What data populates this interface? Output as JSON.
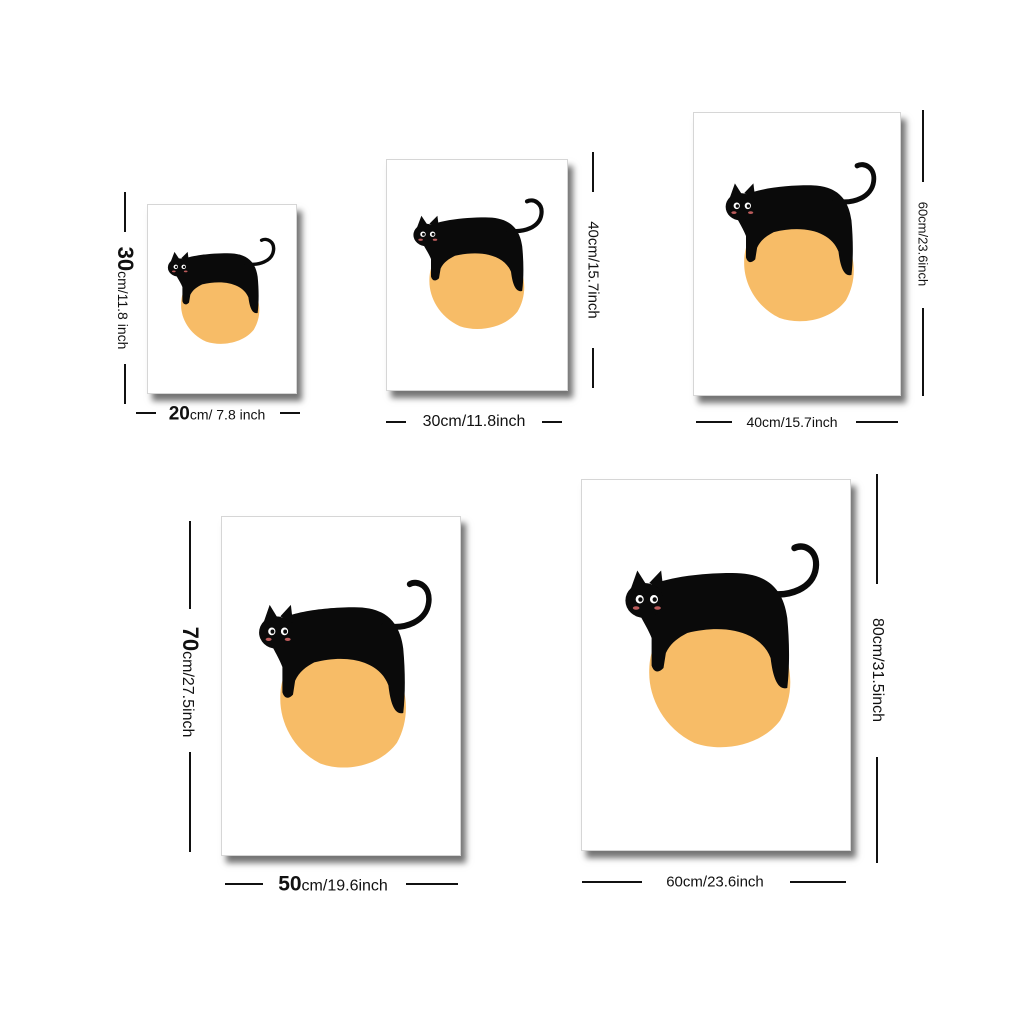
{
  "colors": {
    "sun": "#F7BC67",
    "cat": "#0A0A0A",
    "frame_shadow": "#444444"
  },
  "icons": {
    "artwork": "black-cat-on-orange-circle-illustration"
  },
  "sizes": [
    {
      "width_num": "20",
      "width_unit": "cm/ 7.8 inch",
      "height_num": "30",
      "height_unit": "cm/11.8 inch"
    },
    {
      "width_text": "30cm/11.8inch",
      "height_text": "40cm/15.7inch"
    },
    {
      "width_text": "40cm/15.7inch",
      "height_text": "60cm/23.6inch"
    },
    {
      "width_num": "50",
      "width_unit": "cm/19.6inch",
      "height_num": "70",
      "height_unit": "cm/27.5inch"
    },
    {
      "width_text": "60cm/23.6inch",
      "height_text": "80cm/31.5inch"
    }
  ]
}
